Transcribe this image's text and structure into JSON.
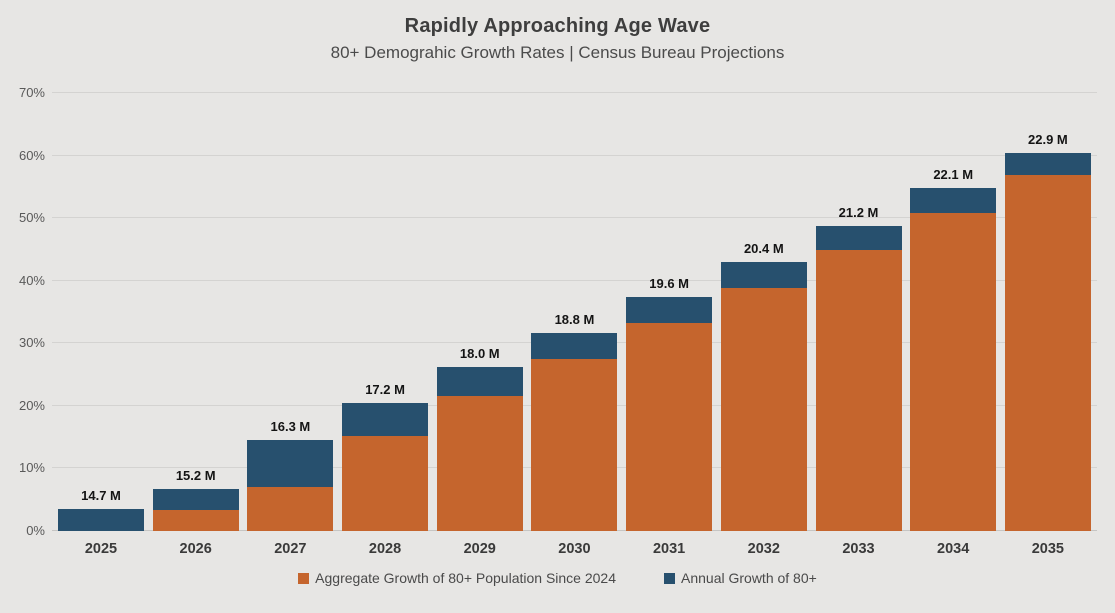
{
  "header": {
    "title": "Rapidly Approaching Age Wave",
    "subtitle": "80+ Demograhic Growth Rates | Census Bureau Projections"
  },
  "colors": {
    "background": "#e7e6e4",
    "gridline": "#d4d3d1",
    "aggregate_orange": "#C5652D",
    "annual_blue": "#27506E"
  },
  "chart_data": {
    "type": "bar",
    "stacked": true,
    "title": "Rapidly Approaching Age Wave",
    "subtitle": "80+ Demograhic Growth Rates | Census Bureau Projections",
    "xlabel": "",
    "ylabel": "",
    "ylim": [
      0,
      70
    ],
    "grid": true,
    "legend_position": "bottom",
    "categories": [
      "2025",
      "2026",
      "2027",
      "2028",
      "2029",
      "2030",
      "2031",
      "2032",
      "2033",
      "2034",
      "2035"
    ],
    "series": [
      {
        "key": "aggregate",
        "name": "Aggregate Growth of 80+ Population Since 2024",
        "color": "#C5652D",
        "values": [
          0,
          3.4,
          7.0,
          15.2,
          21.6,
          27.5,
          33.2,
          38.8,
          44.9,
          50.8,
          56.9
        ]
      },
      {
        "key": "annual",
        "name": "Annual Growth of 80+",
        "color": "#27506E",
        "values": [
          3.5,
          3.3,
          7.5,
          5.3,
          4.6,
          4.2,
          4.2,
          4.2,
          3.8,
          4.0,
          3.5
        ]
      }
    ],
    "totals": [
      3.5,
      6.7,
      14.5,
      20.5,
      26.2,
      31.7,
      37.4,
      43.0,
      48.7,
      54.8,
      60.4
    ],
    "bar_labels": [
      "14.7 M",
      "15.2 M",
      "16.3 M",
      "17.2 M",
      "18.0 M",
      "18.8 M",
      "19.6 M",
      "20.4 M",
      "21.2 M",
      "22.1 M",
      "22.9 M"
    ],
    "yticks": [
      {
        "value": 0,
        "label": "0%"
      },
      {
        "value": 10,
        "label": "10%"
      },
      {
        "value": 20,
        "label": "20%"
      },
      {
        "value": 30,
        "label": "30%"
      },
      {
        "value": 40,
        "label": "40%"
      },
      {
        "value": 50,
        "label": "50%"
      },
      {
        "value": 60,
        "label": "60%"
      },
      {
        "value": 70,
        "label": "70%"
      }
    ]
  }
}
